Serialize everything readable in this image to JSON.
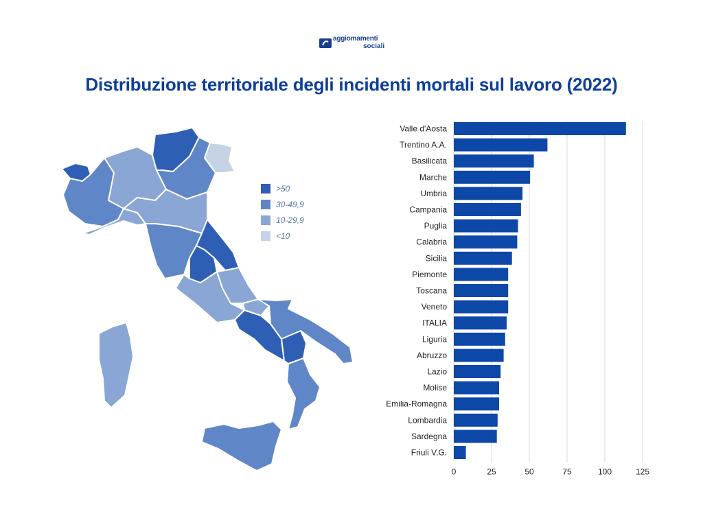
{
  "logo": {
    "line1": "aggiomamenti",
    "line2": "sociali"
  },
  "title": "Distribuzione territoriale degli incidenti mortali sul lavoro (2022)",
  "colors": {
    "bar": "#0d47a8",
    "c1": "#2e5fb5",
    "c2": "#5f86c6",
    "c3": "#89a6d4",
    "c4": "#c6d3e6",
    "grid": "#d9d9d9",
    "text": "#222222"
  },
  "legend": [
    {
      "label": ">50",
      "color": "#2e5fb5"
    },
    {
      "label": "30-49,9",
      "color": "#5f86c6"
    },
    {
      "label": "10-29,9",
      "color": "#89a6d4"
    },
    {
      "label": "<10",
      "color": "#c6d3e6"
    }
  ],
  "chart_data": {
    "type": "bar",
    "orientation": "horizontal",
    "categories": [
      "Valle d'Aosta",
      "Trentino A.A.",
      "Basilicata",
      "Marche",
      "Umbria",
      "Campania",
      "Puglia",
      "Calabria",
      "Sicilia",
      "Piemonte",
      "Toscana",
      "Veneto",
      "ITALIA",
      "Liguria",
      "Abruzzo",
      "Lazio",
      "Molise",
      "Emilia-Romagna",
      "Lombardia",
      "Sardegna",
      "Friuli V.G."
    ],
    "values": [
      114,
      62,
      53,
      50.5,
      45.5,
      44.5,
      42.5,
      42,
      38.5,
      36,
      36,
      36,
      35,
      34,
      33,
      31,
      30,
      30,
      29,
      28.5,
      8
    ],
    "xlim": [
      0,
      125
    ],
    "xticks": [
      0,
      25,
      50,
      75,
      100,
      125
    ],
    "grid": true
  }
}
